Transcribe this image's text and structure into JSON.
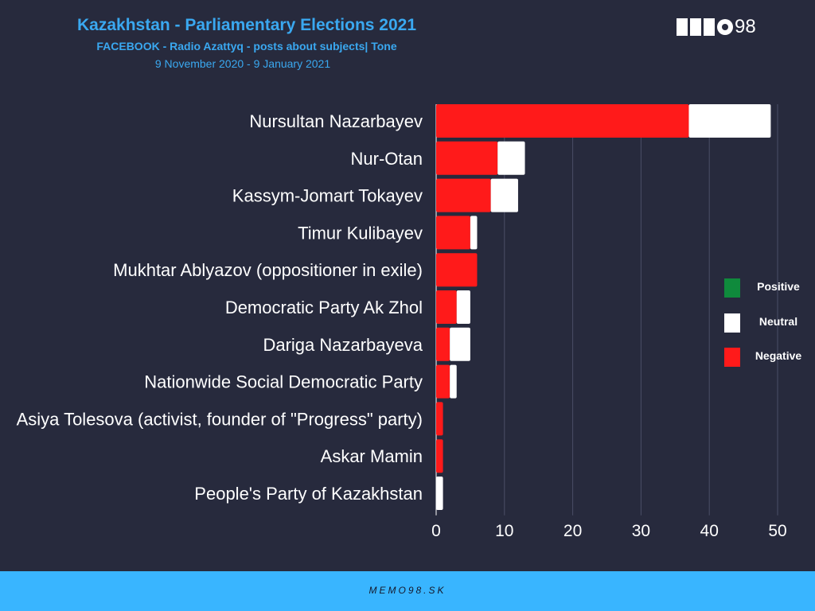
{
  "header": {
    "title": "Kazakhstan - Parliamentary Elections 2021",
    "subtitle": "FACEBOOK - Radio Azattyq - posts about subjects| Tone",
    "date_range": "9 November 2020 - 9 January 2021"
  },
  "logo": {
    "text": "98",
    "letters": "MEMO"
  },
  "legend": {
    "items": [
      {
        "label": "Positive",
        "color": "#0f8a3c"
      },
      {
        "label": "Neutral",
        "color": "#ffffff"
      },
      {
        "label": "Negative",
        "color": "#ff1a1a"
      }
    ]
  },
  "footer": {
    "text": "MEMO98.SK"
  },
  "chart_data": {
    "type": "bar",
    "orientation": "horizontal",
    "stacked": true,
    "categories": [
      "Nursultan Nazarbayev",
      "Nur-Otan",
      "Kassym-Jomart Tokayev",
      "Timur Kulibayev",
      "Mukhtar Ablyazov (oppositioner in exile)",
      "Democratic Party Ak Zhol",
      "Dariga Nazarbayeva",
      "Nationwide Social Democratic Party",
      "Asiya Tolesova (activist, founder of \"Progress\" party)",
      "Askar Mamin",
      "People's Party of Kazakhstan"
    ],
    "series": [
      {
        "name": "Negative",
        "color": "#ff1a1a",
        "values": [
          37,
          9,
          8,
          5,
          6,
          3,
          2,
          2,
          1,
          1,
          0
        ]
      },
      {
        "name": "Neutral",
        "color": "#ffffff",
        "values": [
          12,
          4,
          4,
          1,
          0,
          2,
          3,
          1,
          0,
          0,
          1
        ]
      },
      {
        "name": "Positive",
        "color": "#0f8a3c",
        "values": [
          0,
          0,
          0,
          0,
          0,
          0,
          0,
          0,
          0,
          0,
          0
        ]
      }
    ],
    "xlim": [
      0,
      50
    ],
    "xticks": [
      0,
      10,
      20,
      30,
      40,
      50
    ],
    "grid": true,
    "legend_position": "right"
  }
}
